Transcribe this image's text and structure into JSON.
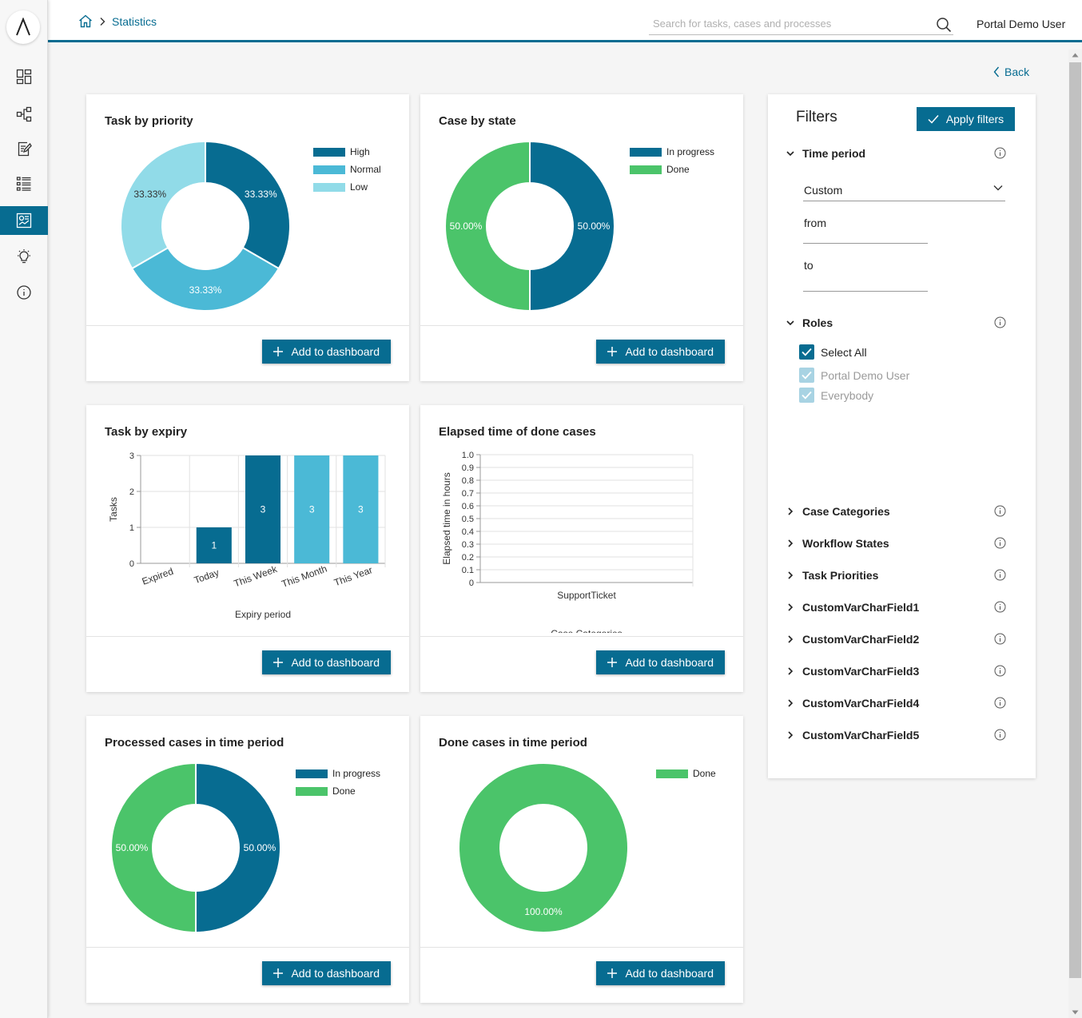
{
  "topbar": {
    "breadcrumb_current": "Statistics",
    "search_placeholder": "Search for tasks, cases and processes",
    "user_name": "Portal Demo User"
  },
  "sidebar": {
    "items": [
      {
        "name": "dashboard",
        "icon": "dashboard-icon",
        "active": false
      },
      {
        "name": "processes",
        "icon": "process-icon",
        "active": false
      },
      {
        "name": "tasks",
        "icon": "task-icon",
        "active": false
      },
      {
        "name": "cases",
        "icon": "case-list-icon",
        "active": false
      },
      {
        "name": "statistics",
        "icon": "statistics-icon",
        "active": true
      },
      {
        "name": "ideas",
        "icon": "lightbulb-icon",
        "active": false
      },
      {
        "name": "about",
        "icon": "info-icon",
        "active": false
      }
    ]
  },
  "back_label": "Back",
  "add_label": "Add to dashboard",
  "colors": {
    "dark_blue": "#076c91",
    "mid_blue": "#4bb9d6",
    "light_blue": "#91dbe8",
    "green": "#4bc46a"
  },
  "cards": {
    "priority": {
      "title": "Task by priority"
    },
    "state": {
      "title": "Case by state"
    },
    "expiry": {
      "title": "Task by expiry"
    },
    "elapsed": {
      "title": "Elapsed time of done cases"
    },
    "processed": {
      "title": "Processed cases in time period"
    },
    "done": {
      "title": "Done cases in time period"
    }
  },
  "chart_data": [
    {
      "id": "priority",
      "type": "pie",
      "title": "Task by priority",
      "labels": [
        "High",
        "Normal",
        "Low"
      ],
      "values": [
        33.33,
        33.33,
        33.33
      ],
      "value_labels": [
        "33.33%",
        "33.33%",
        "33.33%"
      ],
      "colors": [
        "#076c91",
        "#4bb9d6",
        "#91dbe8"
      ],
      "legend": "top-right",
      "donut": true
    },
    {
      "id": "state",
      "type": "pie",
      "title": "Case by state",
      "labels": [
        "In progress",
        "Done"
      ],
      "values": [
        50,
        50
      ],
      "value_labels": [
        "50.00%",
        "50.00%"
      ],
      "colors": [
        "#076c91",
        "#4bc46a"
      ],
      "legend": "top-right",
      "donut": true
    },
    {
      "id": "expiry",
      "type": "bar",
      "title": "Task by expiry",
      "categories": [
        "Expired",
        "Today",
        "This Week",
        "This Month",
        "This Year"
      ],
      "values": [
        0,
        1,
        3,
        3,
        3
      ],
      "colors": [
        "#076c91",
        "#076c91",
        "#076c91",
        "#4bb9d6",
        "#4bb9d6"
      ],
      "xlabel": "Expiry period",
      "ylabel": "Tasks",
      "ylim": [
        0,
        3
      ],
      "yticks": [
        "0",
        "1",
        "2",
        "3"
      ],
      "grid": true
    },
    {
      "id": "elapsed",
      "type": "bar",
      "title": "Elapsed time of done cases",
      "categories": [
        "SupportTicket"
      ],
      "values": [
        0
      ],
      "xlabel": "Case Categories",
      "ylabel": "Elapsed time in hours",
      "ylim": [
        0,
        1.0
      ],
      "yticks": [
        "0",
        "0.1",
        "0.2",
        "0.3",
        "0.4",
        "0.5",
        "0.6",
        "0.7",
        "0.8",
        "0.9",
        "1.0"
      ],
      "grid": true
    },
    {
      "id": "processed",
      "type": "pie",
      "title": "Processed cases in time period",
      "labels": [
        "In progress",
        "Done"
      ],
      "values": [
        50,
        50
      ],
      "value_labels": [
        "50.00%",
        "50.00%"
      ],
      "colors": [
        "#076c91",
        "#4bc46a"
      ],
      "legend": "top-right",
      "donut": true
    },
    {
      "id": "done",
      "type": "pie",
      "title": "Done cases in time period",
      "labels": [
        "Done"
      ],
      "values": [
        100
      ],
      "value_labels": [
        "100.00%"
      ],
      "colors": [
        "#4bc46a"
      ],
      "legend": "top-right",
      "donut": true
    }
  ],
  "filters": {
    "title": "Filters",
    "apply_label": "Apply filters",
    "time_period": {
      "label": "Time period",
      "selected": "Custom",
      "from_label": "from",
      "to_label": "to"
    },
    "roles": {
      "label": "Roles",
      "options": [
        {
          "label": "Select All",
          "checked": true,
          "disabled": false
        },
        {
          "label": "Portal Demo User",
          "checked": true,
          "disabled": true
        },
        {
          "label": "Everybody",
          "checked": true,
          "disabled": true
        }
      ]
    },
    "collapsed_sections": [
      "Case Categories",
      "Workflow States",
      "Task Priorities",
      "CustomVarCharField1",
      "CustomVarCharField2",
      "CustomVarCharField3",
      "CustomVarCharField4",
      "CustomVarCharField5"
    ]
  }
}
